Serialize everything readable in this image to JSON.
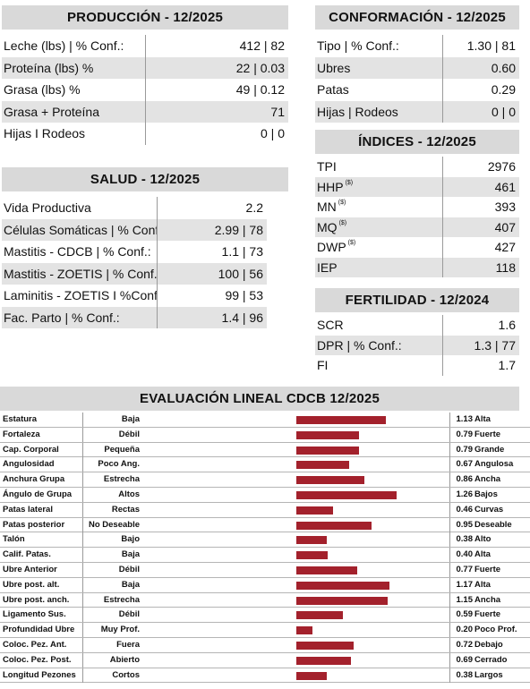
{
  "produccion": {
    "title": "PRODUCCIÓN - 12/2025",
    "rows": [
      {
        "label": "Leche (lbs) | % Conf.:",
        "value": "412 | 82",
        "shaded": false
      },
      {
        "label": "Proteína (lbs) %",
        "value": "22 | 0.03",
        "shaded": true
      },
      {
        "label": "Grasa (lbs) %",
        "value": "49 | 0.12",
        "shaded": false
      },
      {
        "label": "Grasa + Proteína",
        "value": "71",
        "shaded": true
      },
      {
        "label": "Hijas I Rodeos",
        "value": "0 | 0",
        "shaded": false
      }
    ]
  },
  "salud": {
    "title": "SALUD - 12/2025",
    "rows": [
      {
        "label": "Vida Productiva",
        "value": "2.2",
        "shaded": false
      },
      {
        "label": "Células Somáticas | % Conf.:",
        "value": "2.99 | 78",
        "shaded": true
      },
      {
        "label": "Mastitis - CDCB | % Conf.:",
        "value": "1.1 | 73",
        "shaded": false
      },
      {
        "label": "Mastitis - ZOETIS | % Conf.:",
        "value": "100 | 56",
        "shaded": true
      },
      {
        "label": "Laminitis - ZOETIS I %Conf.:",
        "value": "99 | 53",
        "shaded": false
      },
      {
        "label": "Fac. Parto | % Conf.:",
        "value": "1.4 | 96",
        "shaded": true
      }
    ]
  },
  "conformacion": {
    "title": "CONFORMACIÓN - 12/2025",
    "rows": [
      {
        "label": "Tipo | % Conf.:",
        "value": "1.30 | 81",
        "shaded": false
      },
      {
        "label": "Ubres",
        "value": "0.60",
        "shaded": true
      },
      {
        "label": "Patas",
        "value": "0.29",
        "shaded": false
      },
      {
        "label": "Hijas | Rodeos",
        "value": "0 | 0",
        "shaded": true
      }
    ]
  },
  "indices": {
    "title": "ÍNDICES - 12/2025",
    "rows": [
      {
        "label": "TPI",
        "sup": "",
        "value": "2976",
        "shaded": false
      },
      {
        "label": "HHP",
        "sup": "($)",
        "value": "461",
        "shaded": true
      },
      {
        "label": "MN",
        "sup": "($)",
        "value": "393",
        "shaded": false
      },
      {
        "label": "MQ",
        "sup": "($)",
        "value": "407",
        "shaded": true
      },
      {
        "label": "DWP",
        "sup": "($)",
        "value": "427",
        "shaded": false
      },
      {
        "label": "IEP",
        "sup": "",
        "value": "118",
        "shaded": true
      }
    ]
  },
  "fertilidad": {
    "title": "FERTILIDAD - 12/2024",
    "rows": [
      {
        "label": "SCR",
        "value": "1.6",
        "shaded": false
      },
      {
        "label": "DPR | % Conf.:",
        "value": "1.3 | 77",
        "shaded": true
      },
      {
        "label": "FI",
        "value": "1.7",
        "shaded": false
      }
    ]
  },
  "lineal": {
    "title": "EVALUACIÓN LINEAL CDCB 12/2025",
    "bar_color": "#a3212c",
    "rows": [
      {
        "trait": "Estatura",
        "low": "Baja",
        "value": 1.13,
        "value_text": "1.13",
        "high": "Alta"
      },
      {
        "trait": "Fortaleza",
        "low": "Débil",
        "value": 0.79,
        "value_text": "0.79",
        "high": "Fuerte"
      },
      {
        "trait": "Cap. Corporal",
        "low": "Pequeña",
        "value": 0.79,
        "value_text": "0.79",
        "high": "Grande"
      },
      {
        "trait": "Angulosidad",
        "low": "Poco Ang.",
        "value": 0.67,
        "value_text": "0.67",
        "high": "Angulosa"
      },
      {
        "trait": "Anchura Grupa",
        "low": "Estrecha",
        "value": 0.86,
        "value_text": "0.86",
        "high": "Ancha"
      },
      {
        "trait": "Ángulo de Grupa",
        "low": "Altos",
        "value": 1.26,
        "value_text": "1.26",
        "high": "Bajos"
      },
      {
        "trait": "Patas lateral",
        "low": "Rectas",
        "value": 0.46,
        "value_text": "0.46",
        "high": "Curvas"
      },
      {
        "trait": "Patas posterior",
        "low": "No Deseable",
        "value": 0.95,
        "value_text": "0.95",
        "high": "Deseable"
      },
      {
        "trait": "Talón",
        "low": "Bajo",
        "value": 0.38,
        "value_text": "0.38",
        "high": "Alto"
      },
      {
        "trait": "Calif. Patas.",
        "low": "Baja",
        "value": 0.4,
        "value_text": "0.40",
        "high": "Alta"
      },
      {
        "trait": "Ubre Anterior",
        "low": "Débil",
        "value": 0.77,
        "value_text": "0.77",
        "high": "Fuerte"
      },
      {
        "trait": "Ubre post. alt.",
        "low": "Baja",
        "value": 1.17,
        "value_text": "1.17",
        "high": "Alta"
      },
      {
        "trait": "Ubre post. anch.",
        "low": "Estrecha",
        "value": 1.15,
        "value_text": "1.15",
        "high": "Ancha"
      },
      {
        "trait": "Ligamento Sus.",
        "low": "Débil",
        "value": 0.59,
        "value_text": "0.59",
        "high": "Fuerte"
      },
      {
        "trait": "Profundidad Ubre",
        "low": "Muy Prof.",
        "value": 0.2,
        "value_text": "0.20",
        "high": "Poco Prof."
      },
      {
        "trait": "Coloc. Pez. Ant.",
        "low": "Fuera",
        "value": 0.72,
        "value_text": "0.72",
        "high": "Debajo"
      },
      {
        "trait": "Coloc. Pez. Post.",
        "low": "Abierto",
        "value": 0.69,
        "value_text": "0.69",
        "high": "Cerrado"
      },
      {
        "trait": "Longitud Pezones",
        "low": "Cortos",
        "value": 0.38,
        "value_text": "0.38",
        "high": "Largos"
      }
    ]
  }
}
